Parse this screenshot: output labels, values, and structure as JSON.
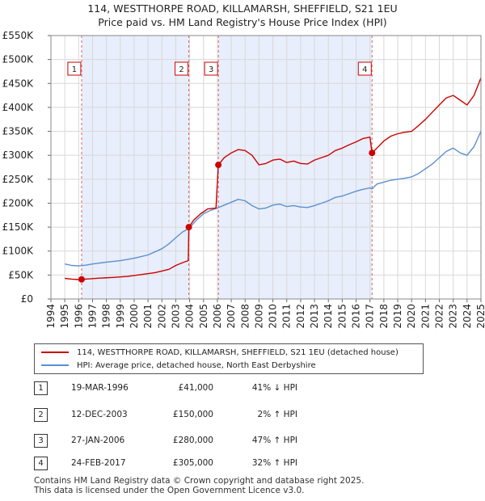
{
  "chart_data": {
    "type": "line",
    "title": "114, WESTTHORPE ROAD, KILLAMARSH, SHEFFIELD, S21 1EU",
    "subtitle": "Price paid vs. HM Land Registry's House Price Index (HPI)",
    "xlabel": "",
    "ylabel": "",
    "xlim": [
      1994,
      2025
    ],
    "ylim": [
      0,
      550000
    ],
    "x_ticks": [
      "1994",
      "1995",
      "1996",
      "1997",
      "1998",
      "1999",
      "2000",
      "2001",
      "2002",
      "2003",
      "2004",
      "2005",
      "2006",
      "2007",
      "2008",
      "2009",
      "2010",
      "2011",
      "2012",
      "2013",
      "2014",
      "2015",
      "2016",
      "2017",
      "2018",
      "2019",
      "2020",
      "2021",
      "2022",
      "2023",
      "2024",
      "2025"
    ],
    "y_ticks": [
      {
        "value": 0,
        "label": "£0"
      },
      {
        "value": 50000,
        "label": "£50K"
      },
      {
        "value": 100000,
        "label": "£100K"
      },
      {
        "value": 150000,
        "label": "£150K"
      },
      {
        "value": 200000,
        "label": "£200K"
      },
      {
        "value": 250000,
        "label": "£250K"
      },
      {
        "value": 300000,
        "label": "£300K"
      },
      {
        "value": 350000,
        "label": "£350K"
      },
      {
        "value": 400000,
        "label": "£400K"
      },
      {
        "value": 450000,
        "label": "£450K"
      },
      {
        "value": 500000,
        "label": "£500K"
      },
      {
        "value": 550000,
        "label": "£550K"
      }
    ],
    "series": [
      {
        "name": "114, WESTTHORPE ROAD, KILLAMARSH, SHEFFIELD, S21 1EU (detached house)",
        "color": "#cc0000",
        "points": [
          [
            1995.0,
            43000
          ],
          [
            1995.5,
            41500
          ],
          [
            1996.0,
            40500
          ],
          [
            1996.21,
            41000
          ],
          [
            1996.8,
            42000
          ],
          [
            1997.5,
            43500
          ],
          [
            1998.5,
            45000
          ],
          [
            1999.5,
            47000
          ],
          [
            2000.5,
            51000
          ],
          [
            2001.5,
            55000
          ],
          [
            2002.5,
            62000
          ],
          [
            2003.0,
            70000
          ],
          [
            2003.5,
            76000
          ],
          [
            2003.9,
            80000
          ],
          [
            2003.94,
            150000
          ],
          [
            2004.3,
            165000
          ],
          [
            2004.8,
            178000
          ],
          [
            2005.3,
            188000
          ],
          [
            2005.9,
            190000
          ],
          [
            2006.07,
            280000
          ],
          [
            2006.5,
            295000
          ],
          [
            2007.0,
            305000
          ],
          [
            2007.5,
            312000
          ],
          [
            2008.0,
            310000
          ],
          [
            2008.5,
            300000
          ],
          [
            2009.0,
            280000
          ],
          [
            2009.5,
            283000
          ],
          [
            2010.0,
            290000
          ],
          [
            2010.5,
            292000
          ],
          [
            2011.0,
            285000
          ],
          [
            2011.5,
            288000
          ],
          [
            2012.0,
            283000
          ],
          [
            2012.5,
            282000
          ],
          [
            2013.0,
            290000
          ],
          [
            2013.5,
            295000
          ],
          [
            2014.0,
            300000
          ],
          [
            2014.5,
            310000
          ],
          [
            2015.0,
            315000
          ],
          [
            2015.5,
            322000
          ],
          [
            2016.0,
            328000
          ],
          [
            2016.5,
            335000
          ],
          [
            2017.0,
            338000
          ],
          [
            2017.15,
            305000
          ],
          [
            2017.5,
            315000
          ],
          [
            2018.0,
            330000
          ],
          [
            2018.5,
            340000
          ],
          [
            2019.0,
            345000
          ],
          [
            2019.5,
            348000
          ],
          [
            2020.0,
            350000
          ],
          [
            2020.5,
            362000
          ],
          [
            2021.0,
            375000
          ],
          [
            2021.5,
            390000
          ],
          [
            2022.0,
            405000
          ],
          [
            2022.5,
            420000
          ],
          [
            2023.0,
            425000
          ],
          [
            2023.5,
            415000
          ],
          [
            2024.0,
            405000
          ],
          [
            2024.5,
            425000
          ],
          [
            2025.0,
            462000
          ]
        ]
      },
      {
        "name": "HPI: Average price, detached house, North East Derbyshire",
        "color": "#5b8fd0",
        "points": [
          [
            1995.0,
            73000
          ],
          [
            1995.5,
            70000
          ],
          [
            1996.0,
            69000
          ],
          [
            1996.5,
            70500
          ],
          [
            1997.0,
            73000
          ],
          [
            1998.0,
            77000
          ],
          [
            1999.0,
            80000
          ],
          [
            2000.0,
            85000
          ],
          [
            2001.0,
            92000
          ],
          [
            2002.0,
            105000
          ],
          [
            2002.5,
            115000
          ],
          [
            2003.0,
            128000
          ],
          [
            2003.5,
            140000
          ],
          [
            2003.94,
            147000
          ],
          [
            2004.5,
            165000
          ],
          [
            2005.0,
            178000
          ],
          [
            2005.5,
            185000
          ],
          [
            2006.0,
            190000
          ],
          [
            2006.5,
            196000
          ],
          [
            2007.0,
            202000
          ],
          [
            2007.5,
            208000
          ],
          [
            2008.0,
            205000
          ],
          [
            2008.5,
            195000
          ],
          [
            2009.0,
            188000
          ],
          [
            2009.5,
            190000
          ],
          [
            2010.0,
            196000
          ],
          [
            2010.5,
            198000
          ],
          [
            2011.0,
            193000
          ],
          [
            2011.5,
            195000
          ],
          [
            2012.0,
            192000
          ],
          [
            2012.5,
            191000
          ],
          [
            2013.0,
            195000
          ],
          [
            2013.5,
            200000
          ],
          [
            2014.0,
            205000
          ],
          [
            2014.5,
            212000
          ],
          [
            2015.0,
            215000
          ],
          [
            2015.5,
            220000
          ],
          [
            2016.0,
            225000
          ],
          [
            2016.5,
            229000
          ],
          [
            2017.0,
            232000
          ],
          [
            2017.15,
            230000
          ],
          [
            2017.5,
            240000
          ],
          [
            2018.0,
            244000
          ],
          [
            2018.5,
            248000
          ],
          [
            2019.0,
            250000
          ],
          [
            2019.5,
            252000
          ],
          [
            2020.0,
            255000
          ],
          [
            2020.5,
            262000
          ],
          [
            2021.0,
            272000
          ],
          [
            2021.5,
            282000
          ],
          [
            2022.0,
            295000
          ],
          [
            2022.5,
            308000
          ],
          [
            2023.0,
            315000
          ],
          [
            2023.5,
            305000
          ],
          [
            2024.0,
            300000
          ],
          [
            2024.5,
            318000
          ],
          [
            2025.0,
            350000
          ]
        ]
      }
    ],
    "sales": [
      {
        "num": "1",
        "year": 1996.21,
        "price": 41000
      },
      {
        "num": "2",
        "year": 2003.94,
        "price": 150000
      },
      {
        "num": "3",
        "year": 2006.07,
        "price": 280000
      },
      {
        "num": "4",
        "year": 2017.15,
        "price": 305000
      }
    ],
    "shaded_ranges": [
      [
        1996.21,
        2003.94
      ],
      [
        2006.07,
        2017.15
      ]
    ]
  },
  "legend": {
    "items": [
      {
        "label": "114, WESTTHORPE ROAD, KILLAMARSH, SHEFFIELD, S21 1EU (detached house)",
        "color": "#cc0000"
      },
      {
        "label": "HPI: Average price, detached house, North East Derbyshire",
        "color": "#5b8fd0"
      }
    ]
  },
  "table": {
    "rows": [
      {
        "num": "1",
        "date": "19-MAR-1996",
        "price": "£41,000",
        "hpi": "41% ↓ HPI"
      },
      {
        "num": "2",
        "date": "12-DEC-2003",
        "price": "£150,000",
        "hpi": "2% ↑ HPI"
      },
      {
        "num": "3",
        "date": "27-JAN-2006",
        "price": "£280,000",
        "hpi": "47% ↑ HPI"
      },
      {
        "num": "4",
        "date": "24-FEB-2017",
        "price": "£305,000",
        "hpi": "32% ↑ HPI"
      }
    ]
  },
  "footer": {
    "line1": "Contains HM Land Registry data © Crown copyright and database right 2025.",
    "line2": "This data is licensed under the Open Government Licence v3.0."
  }
}
